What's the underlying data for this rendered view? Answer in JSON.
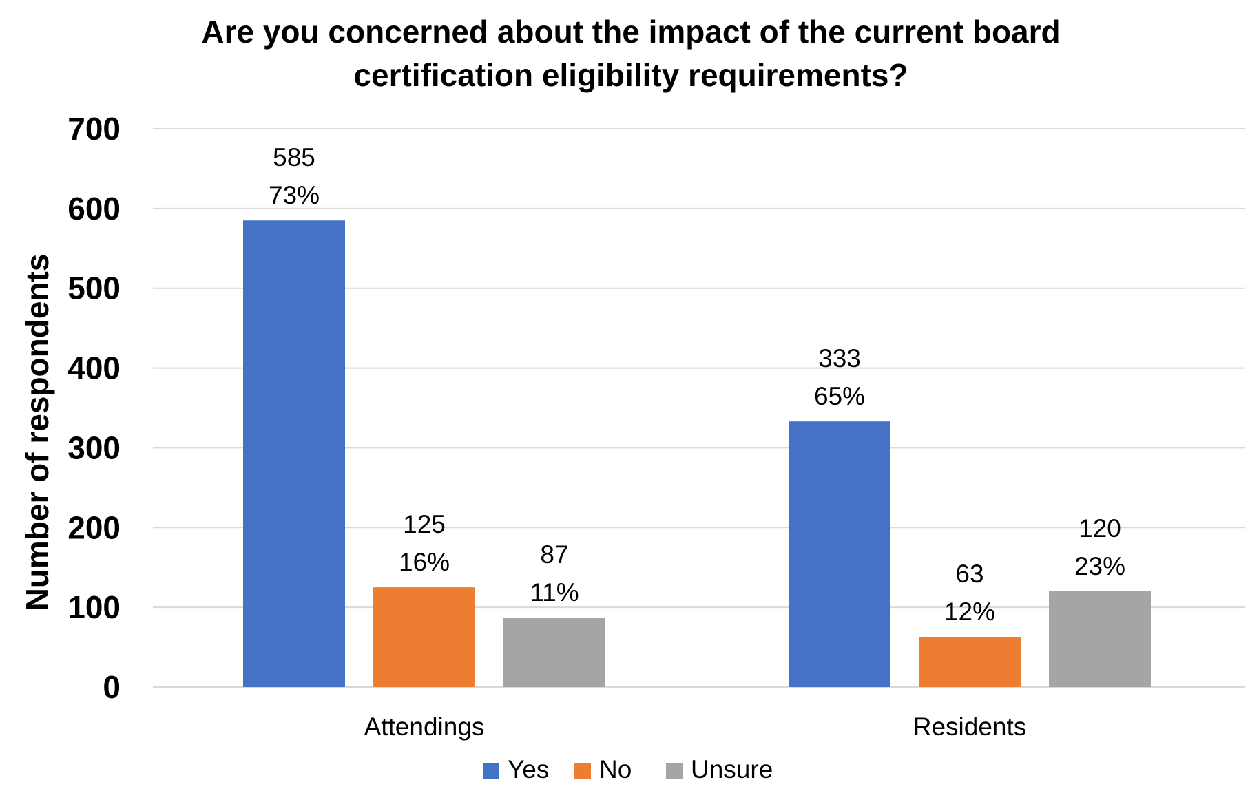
{
  "chart_data": {
    "type": "bar",
    "title_lines": [
      "Are you concerned about the impact of the current board",
      "certification eligibility requirements?"
    ],
    "ylabel": "Number of respondents",
    "xlabel": "",
    "ylim": [
      0,
      700
    ],
    "yticks": [
      0,
      100,
      200,
      300,
      400,
      500,
      600,
      700
    ],
    "categories": [
      "Attendings",
      "Residents"
    ],
    "series": [
      {
        "name": "Yes",
        "color": "#4472c4",
        "values": [
          585,
          333
        ],
        "labels": [
          [
            "585",
            "73%"
          ],
          [
            "333",
            "65%"
          ]
        ]
      },
      {
        "name": "No",
        "color": "#ed7d31",
        "values": [
          125,
          63
        ],
        "labels": [
          [
            "125",
            "16%"
          ],
          [
            "63",
            "12%"
          ]
        ]
      },
      {
        "name": "Unsure",
        "color": "#a5a5a5",
        "values": [
          87,
          120
        ],
        "labels": [
          [
            "87",
            "11%"
          ],
          [
            "120",
            "23%"
          ]
        ]
      }
    ],
    "grid": true,
    "legend_position": "bottom"
  }
}
